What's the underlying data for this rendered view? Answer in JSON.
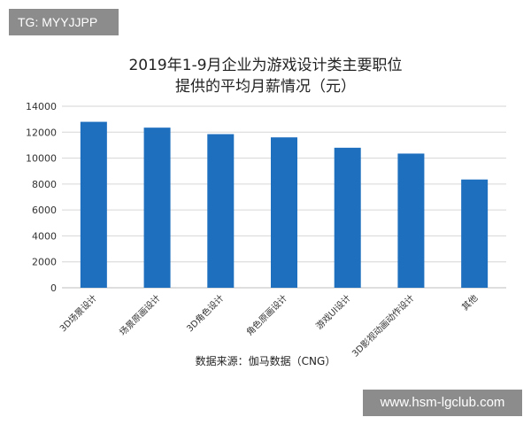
{
  "tag_label": "TG: MYYJJPP",
  "site_label": "www.hsm-lgclub.com",
  "source_note": "数据来源：伽马数据（CNG）",
  "colors": {
    "bar": "#1f6fbf",
    "grid": "#d6d6d6",
    "axis_text": "#333333"
  },
  "chart_data": {
    "type": "bar",
    "title_line1": "2019年1-9月企业为游戏设计类主要职位",
    "title_line2": "提供的平均月薪情况（元）",
    "categories": [
      "3D场景设计",
      "场景原画设计",
      "3D角色设计",
      "角色原画设计",
      "游戏UI设计",
      "3D影视动画动作设计",
      "其他"
    ],
    "values": [
      12800,
      12350,
      11850,
      11600,
      10800,
      10350,
      8350
    ],
    "yticks": [
      0,
      2000,
      4000,
      6000,
      8000,
      10000,
      12000,
      14000
    ],
    "ylim": [
      0,
      14000
    ],
    "grid": true
  }
}
